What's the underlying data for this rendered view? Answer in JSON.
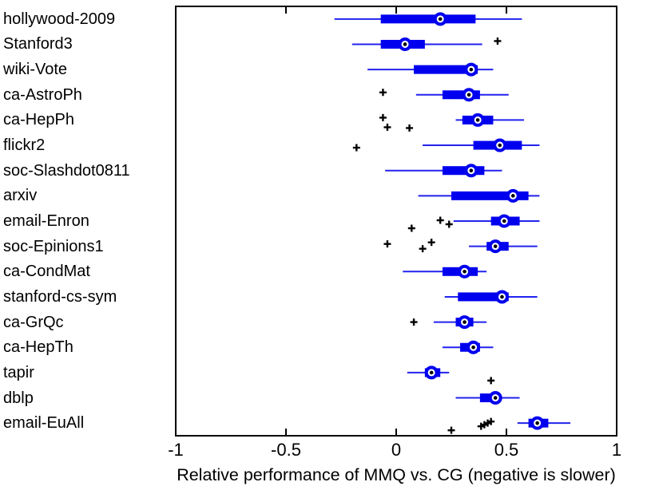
{
  "chart_data": {
    "type": "boxplot",
    "orientation": "horizontal",
    "title": "",
    "xlabel": "Relative performance of MMQ vs. CG (negative is slower)",
    "ylabel": "",
    "xlim": [
      -1,
      1
    ],
    "x_ticks": [
      -1,
      -0.5,
      0,
      0.5,
      1
    ],
    "x_tick_labels": [
      "-1",
      "-0.5",
      "0",
      "0.5",
      "1"
    ],
    "grid": false,
    "legend": "none",
    "colors": {
      "box": "#0000EE",
      "whisker": "#2222EE",
      "median_ring": "#0000EE",
      "median_ring_fill": "#ffffff",
      "median_dot": "#000000",
      "outlier": "#000000",
      "axis": "#000000",
      "background": "#ffffff"
    },
    "rows": [
      {
        "label": "hollywood-2009",
        "whisker_low": -0.28,
        "q1": -0.07,
        "median": 0.2,
        "q3": 0.36,
        "whisker_high": 0.57,
        "outliers": []
      },
      {
        "label": "Stanford3",
        "whisker_low": -0.2,
        "q1": -0.07,
        "median": 0.04,
        "q3": 0.13,
        "whisker_high": 0.39,
        "outliers": [
          {
            "x": 0.46,
            "dy": -4
          }
        ]
      },
      {
        "label": "wiki-Vote",
        "whisker_low": -0.13,
        "q1": 0.08,
        "median": 0.34,
        "q3": 0.37,
        "whisker_high": 0.44,
        "outliers": []
      },
      {
        "label": "ca-AstroPh",
        "whisker_low": 0.09,
        "q1": 0.21,
        "median": 0.33,
        "q3": 0.38,
        "whisker_high": 0.51,
        "outliers": [
          {
            "x": -0.06,
            "dy": -3
          }
        ]
      },
      {
        "label": "ca-HepPh",
        "whisker_low": 0.27,
        "q1": 0.3,
        "median": 0.37,
        "q3": 0.44,
        "whisker_high": 0.58,
        "outliers": [
          {
            "x": -0.06,
            "dy": -3
          },
          {
            "x": -0.04,
            "dy": 9
          },
          {
            "x": 0.06,
            "dy": 10
          }
        ]
      },
      {
        "label": "flickr2",
        "whisker_low": 0.12,
        "q1": 0.35,
        "median": 0.47,
        "q3": 0.57,
        "whisker_high": 0.65,
        "outliers": [
          {
            "x": -0.18,
            "dy": 3
          }
        ]
      },
      {
        "label": "soc-Slashdot0811",
        "whisker_low": -0.05,
        "q1": 0.21,
        "median": 0.34,
        "q3": 0.4,
        "whisker_high": 0.48,
        "outliers": []
      },
      {
        "label": "arxiv",
        "whisker_low": 0.1,
        "q1": 0.25,
        "median": 0.53,
        "q3": 0.6,
        "whisker_high": 0.65,
        "outliers": []
      },
      {
        "label": "email-Enron",
        "whisker_low": 0.26,
        "q1": 0.43,
        "median": 0.49,
        "q3": 0.56,
        "whisker_high": 0.65,
        "outliers": [
          {
            "x": 0.2,
            "dy": -1
          },
          {
            "x": 0.24,
            "dy": 4
          },
          {
            "x": 0.07,
            "dy": 9
          }
        ]
      },
      {
        "label": "soc-Epinions1",
        "whisker_low": 0.33,
        "q1": 0.41,
        "median": 0.45,
        "q3": 0.51,
        "whisker_high": 0.64,
        "outliers": [
          {
            "x": -0.04,
            "dy": -3
          },
          {
            "x": 0.16,
            "dy": -5
          },
          {
            "x": 0.12,
            "dy": 3
          }
        ]
      },
      {
        "label": "ca-CondMat",
        "whisker_low": 0.03,
        "q1": 0.21,
        "median": 0.31,
        "q3": 0.37,
        "whisker_high": 0.41,
        "outliers": []
      },
      {
        "label": "stanford-cs-sym",
        "whisker_low": 0.22,
        "q1": 0.28,
        "median": 0.48,
        "q3": 0.51,
        "whisker_high": 0.64,
        "outliers": []
      },
      {
        "label": "ca-GrQc",
        "whisker_low": 0.17,
        "q1": 0.27,
        "median": 0.31,
        "q3": 0.35,
        "whisker_high": 0.41,
        "outliers": [
          {
            "x": 0.08,
            "dy": 0
          }
        ]
      },
      {
        "label": "ca-HepTh",
        "whisker_low": 0.21,
        "q1": 0.29,
        "median": 0.35,
        "q3": 0.38,
        "whisker_high": 0.44,
        "outliers": []
      },
      {
        "label": "tapir",
        "whisker_low": 0.05,
        "q1": 0.13,
        "median": 0.16,
        "q3": 0.2,
        "whisker_high": 0.24,
        "outliers": [
          {
            "x": 0.43,
            "dy": 10
          }
        ]
      },
      {
        "label": "dblp",
        "whisker_low": 0.27,
        "q1": 0.38,
        "median": 0.45,
        "q3": 0.47,
        "whisker_high": 0.56,
        "outliers": []
      },
      {
        "label": "email-EuAll",
        "whisker_low": 0.55,
        "q1": 0.6,
        "median": 0.64,
        "q3": 0.69,
        "whisker_high": 0.79,
        "outliers": [
          {
            "x": 0.25,
            "dy": 9
          },
          {
            "x": 0.385,
            "dy": 4
          },
          {
            "x": 0.4,
            "dy": 2
          },
          {
            "x": 0.415,
            "dy": 0
          },
          {
            "x": 0.43,
            "dy": -2
          }
        ]
      }
    ]
  }
}
